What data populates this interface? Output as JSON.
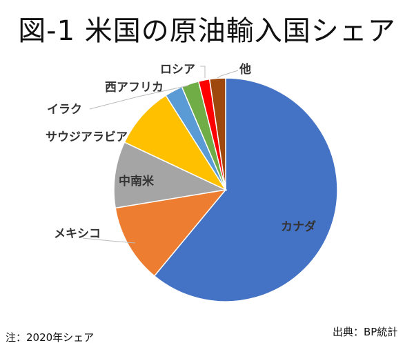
{
  "chart_data": {
    "type": "pie",
    "title": "図-1 米国の原油輸入国シェア",
    "start_angle_deg": 0,
    "direction": "clockwise",
    "slices": [
      {
        "label": "カナダ",
        "value": 61.0,
        "color": "#4472C4"
      },
      {
        "label": "メキシコ",
        "value": 11.4,
        "color": "#ED7D31"
      },
      {
        "label": "中南米",
        "value": 9.6,
        "color": "#A5A5A5"
      },
      {
        "label": "サウジアラビア",
        "value": 9.0,
        "color": "#FFC000"
      },
      {
        "label": "イラク",
        "value": 2.6,
        "color": "#5B9BD5"
      },
      {
        "label": "西アフリカ",
        "value": 2.5,
        "color": "#70AD47"
      },
      {
        "label": "ロシア",
        "value": 1.6,
        "color": "#FF0000"
      },
      {
        "label": "他",
        "value": 2.3,
        "color": "#9E480E"
      }
    ],
    "legend": "none"
  },
  "note": "注：2020年シェア",
  "source": "出典：BP統計"
}
